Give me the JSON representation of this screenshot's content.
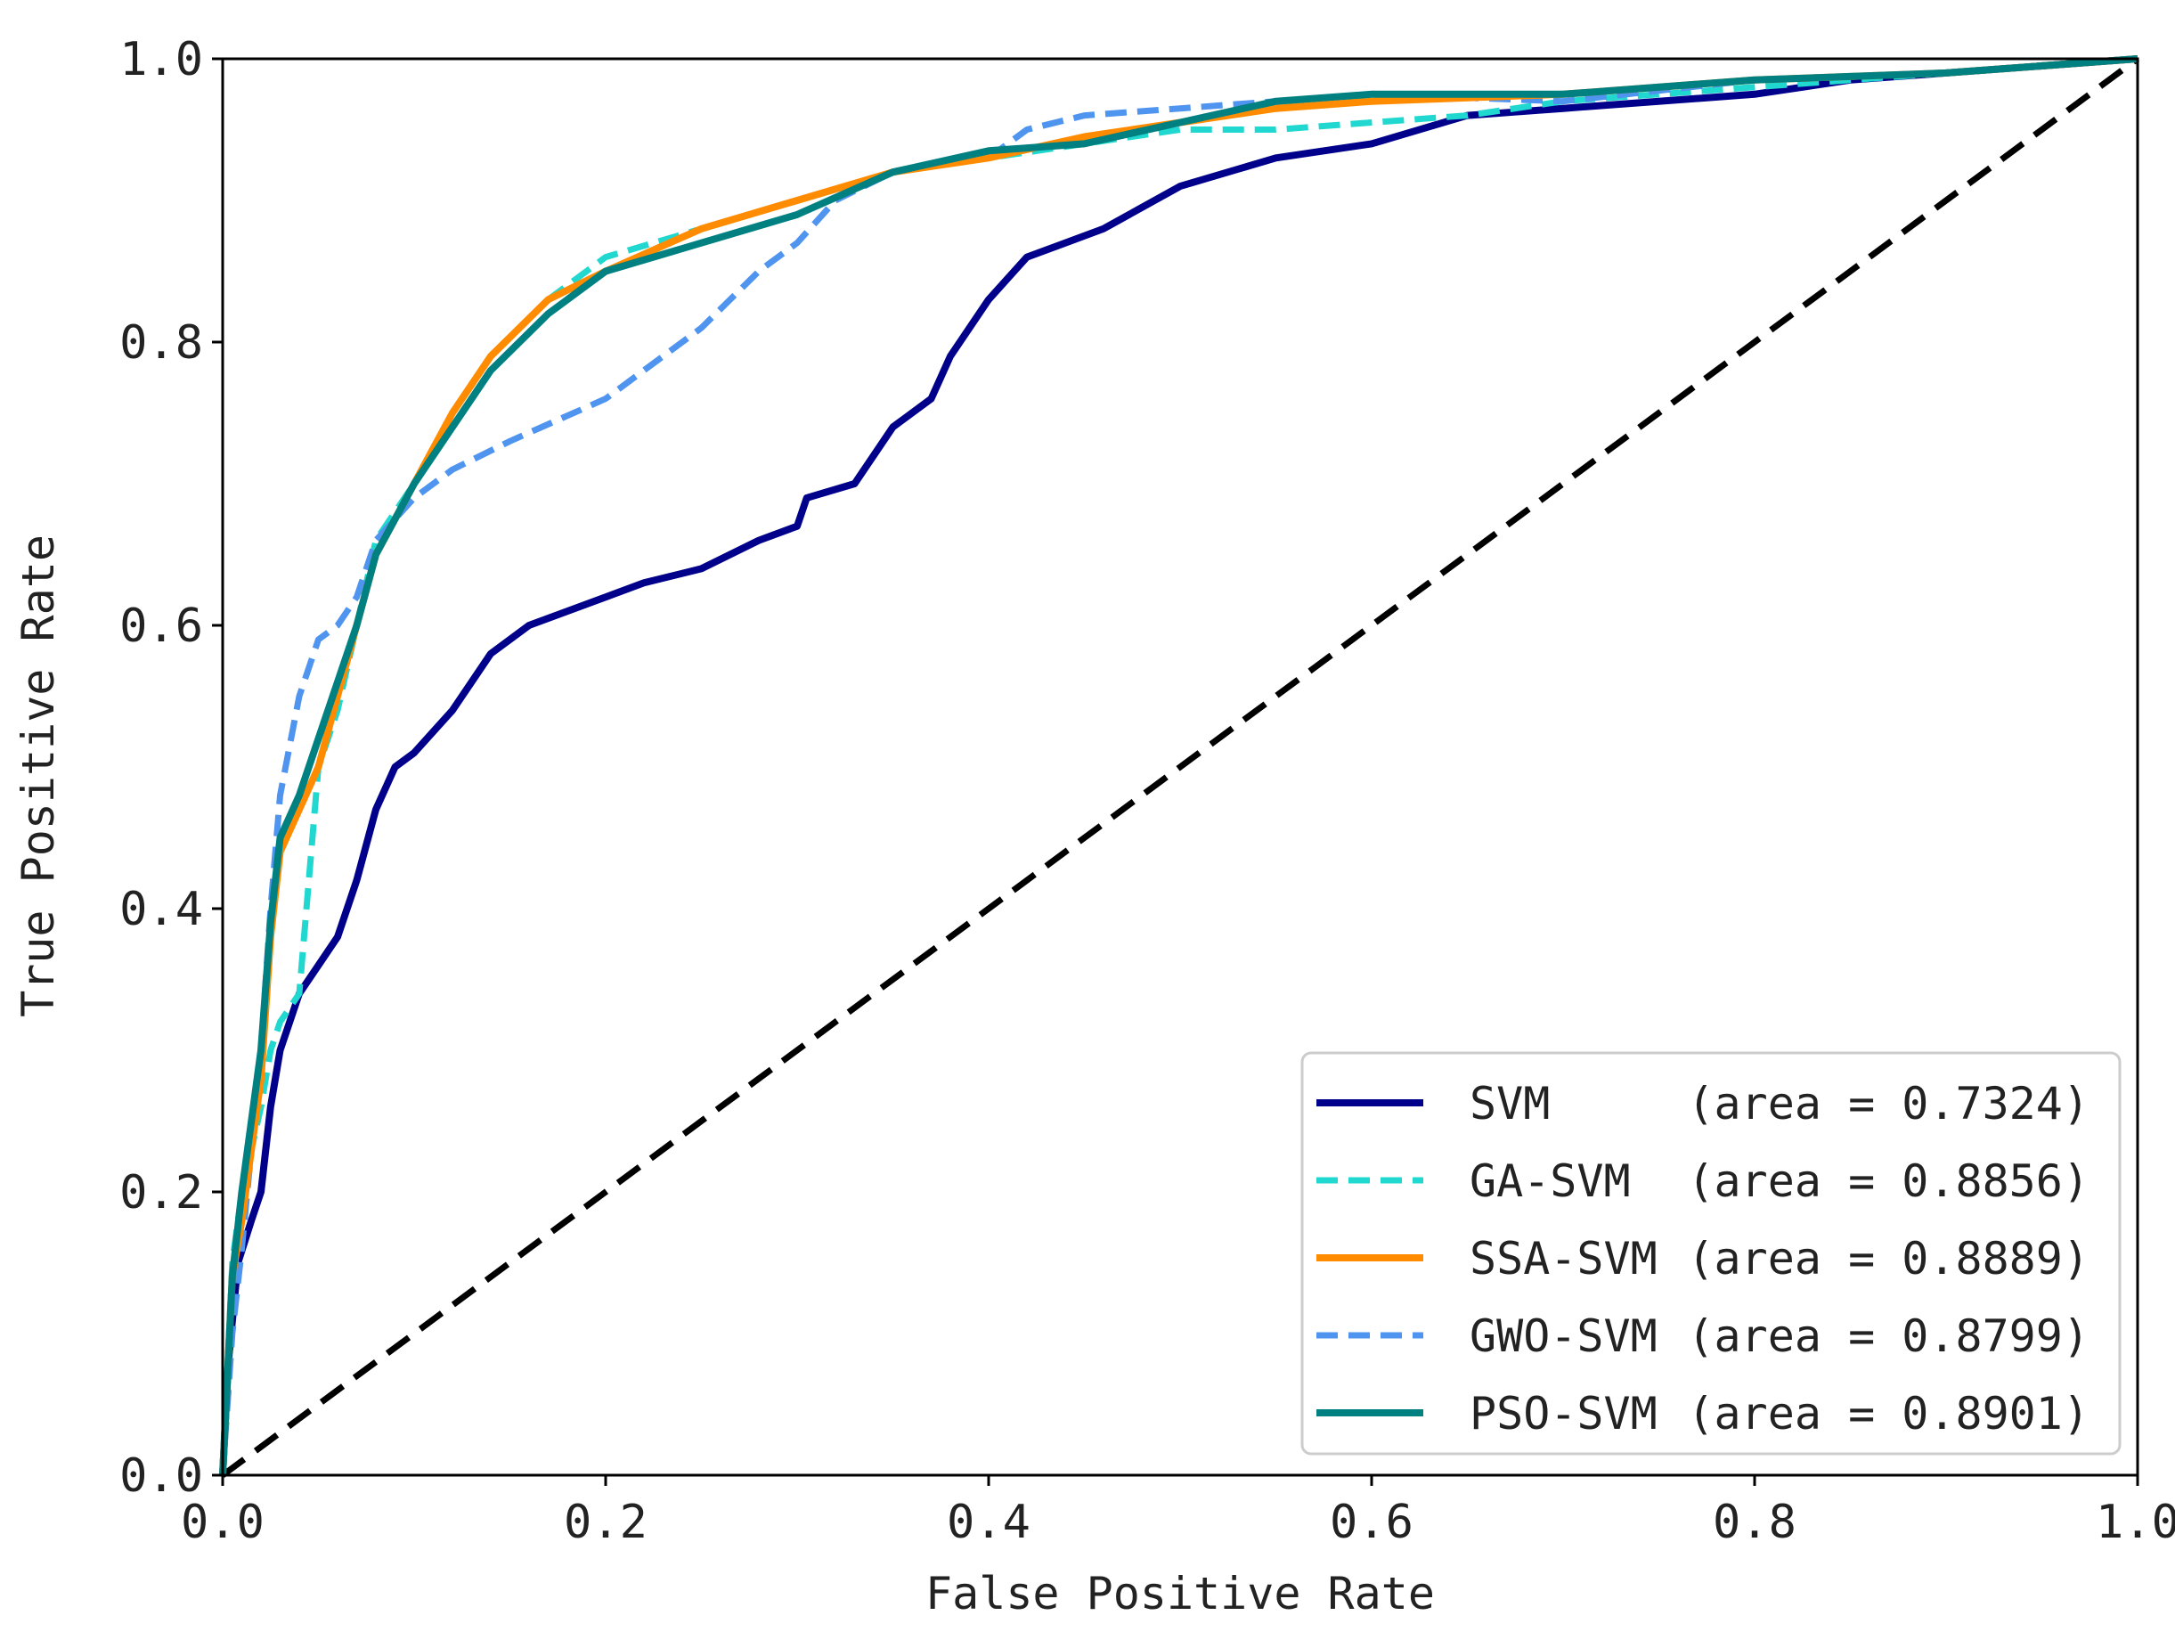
{
  "chart_data": {
    "type": "line",
    "title": "",
    "xlabel": "False Positive Rate",
    "ylabel": "True Positive Rate",
    "xlim": [
      0.0,
      1.0
    ],
    "ylim": [
      0.0,
      1.0
    ],
    "x_ticks": [
      "0.0",
      "0.2",
      "0.4",
      "0.6",
      "0.8",
      "1.0"
    ],
    "y_ticks": [
      "0.0",
      "0.2",
      "0.4",
      "0.6",
      "0.8",
      "1.0"
    ],
    "grid": false,
    "legend_position": "lower-right",
    "diagonal": {
      "name": "chance",
      "color": "#000000",
      "style": "dashed",
      "x": [
        0,
        1
      ],
      "y": [
        0,
        1
      ]
    },
    "series": [
      {
        "name": "SVM",
        "area_label": "(area = 0.7324)",
        "color": "#00008b",
        "style": "solid",
        "x": [
          0.0,
          0.003,
          0.008,
          0.015,
          0.02,
          0.025,
          0.03,
          0.04,
          0.05,
          0.06,
          0.07,
          0.08,
          0.09,
          0.1,
          0.12,
          0.14,
          0.16,
          0.18,
          0.2,
          0.22,
          0.25,
          0.28,
          0.3,
          0.305,
          0.33,
          0.35,
          0.37,
          0.38,
          0.4,
          0.42,
          0.44,
          0.46,
          0.5,
          0.55,
          0.6,
          0.65,
          0.7,
          0.8,
          0.85,
          0.9,
          1.0
        ],
        "y": [
          0.0,
          0.08,
          0.15,
          0.18,
          0.2,
          0.26,
          0.3,
          0.34,
          0.36,
          0.38,
          0.42,
          0.47,
          0.5,
          0.51,
          0.54,
          0.58,
          0.6,
          0.61,
          0.62,
          0.63,
          0.64,
          0.66,
          0.67,
          0.69,
          0.7,
          0.74,
          0.76,
          0.79,
          0.83,
          0.86,
          0.87,
          0.88,
          0.91,
          0.93,
          0.94,
          0.96,
          0.965,
          0.975,
          0.985,
          0.99,
          1.0
        ]
      },
      {
        "name": "GA-SVM",
        "area_label": "(area = 0.8856)",
        "color": "#20d8cf",
        "style": "dashed",
        "x": [
          0.0,
          0.005,
          0.01,
          0.02,
          0.025,
          0.03,
          0.04,
          0.05,
          0.06,
          0.07,
          0.08,
          0.1,
          0.12,
          0.14,
          0.17,
          0.2,
          0.25,
          0.3,
          0.35,
          0.4,
          0.45,
          0.5,
          0.55,
          0.6,
          0.65,
          0.7,
          0.8,
          0.9,
          1.0
        ],
        "y": [
          0.0,
          0.15,
          0.2,
          0.26,
          0.3,
          0.32,
          0.34,
          0.5,
          0.54,
          0.6,
          0.66,
          0.7,
          0.75,
          0.79,
          0.83,
          0.86,
          0.88,
          0.9,
          0.92,
          0.93,
          0.94,
          0.95,
          0.95,
          0.955,
          0.96,
          0.97,
          0.98,
          0.99,
          1.0
        ]
      },
      {
        "name": "SSA-SVM",
        "area_label": "(area = 0.8889)",
        "color": "#ff8c00",
        "style": "solid",
        "x": [
          0.0,
          0.005,
          0.01,
          0.02,
          0.025,
          0.03,
          0.04,
          0.05,
          0.06,
          0.07,
          0.08,
          0.1,
          0.12,
          0.14,
          0.17,
          0.2,
          0.25,
          0.3,
          0.35,
          0.4,
          0.45,
          0.5,
          0.55,
          0.6,
          0.7,
          0.8,
          0.9,
          1.0
        ],
        "y": [
          0.0,
          0.14,
          0.18,
          0.28,
          0.38,
          0.44,
          0.47,
          0.5,
          0.55,
          0.6,
          0.65,
          0.7,
          0.75,
          0.79,
          0.83,
          0.85,
          0.88,
          0.9,
          0.92,
          0.93,
          0.945,
          0.955,
          0.965,
          0.97,
          0.975,
          0.985,
          0.99,
          1.0
        ]
      },
      {
        "name": "GWO-SVM",
        "area_label": "(area = 0.8799)",
        "color": "#4f94ef",
        "style": "dashed",
        "x": [
          0.0,
          0.005,
          0.01,
          0.02,
          0.025,
          0.03,
          0.04,
          0.05,
          0.06,
          0.07,
          0.08,
          0.1,
          0.12,
          0.15,
          0.2,
          0.22,
          0.25,
          0.28,
          0.3,
          0.32,
          0.35,
          0.4,
          0.42,
          0.45,
          0.5,
          0.55,
          0.6,
          0.7,
          0.8,
          0.9,
          1.0
        ],
        "y": [
          0.0,
          0.1,
          0.16,
          0.3,
          0.4,
          0.48,
          0.55,
          0.59,
          0.6,
          0.62,
          0.66,
          0.69,
          0.71,
          0.73,
          0.76,
          0.78,
          0.81,
          0.85,
          0.87,
          0.9,
          0.92,
          0.93,
          0.95,
          0.96,
          0.965,
          0.97,
          0.975,
          0.97,
          0.985,
          0.99,
          1.0
        ]
      },
      {
        "name": "PSO-SVM",
        "area_label": "(area = 0.8901)",
        "color": "#008080",
        "style": "solid",
        "x": [
          0.0,
          0.005,
          0.01,
          0.02,
          0.025,
          0.03,
          0.04,
          0.05,
          0.06,
          0.07,
          0.08,
          0.1,
          0.12,
          0.14,
          0.17,
          0.2,
          0.25,
          0.3,
          0.35,
          0.4,
          0.45,
          0.5,
          0.55,
          0.6,
          0.7,
          0.8,
          0.9,
          1.0
        ],
        "y": [
          0.0,
          0.14,
          0.2,
          0.3,
          0.39,
          0.45,
          0.48,
          0.52,
          0.56,
          0.6,
          0.65,
          0.7,
          0.74,
          0.78,
          0.82,
          0.85,
          0.87,
          0.89,
          0.92,
          0.935,
          0.94,
          0.955,
          0.97,
          0.975,
          0.975,
          0.985,
          0.99,
          1.0
        ]
      }
    ]
  }
}
